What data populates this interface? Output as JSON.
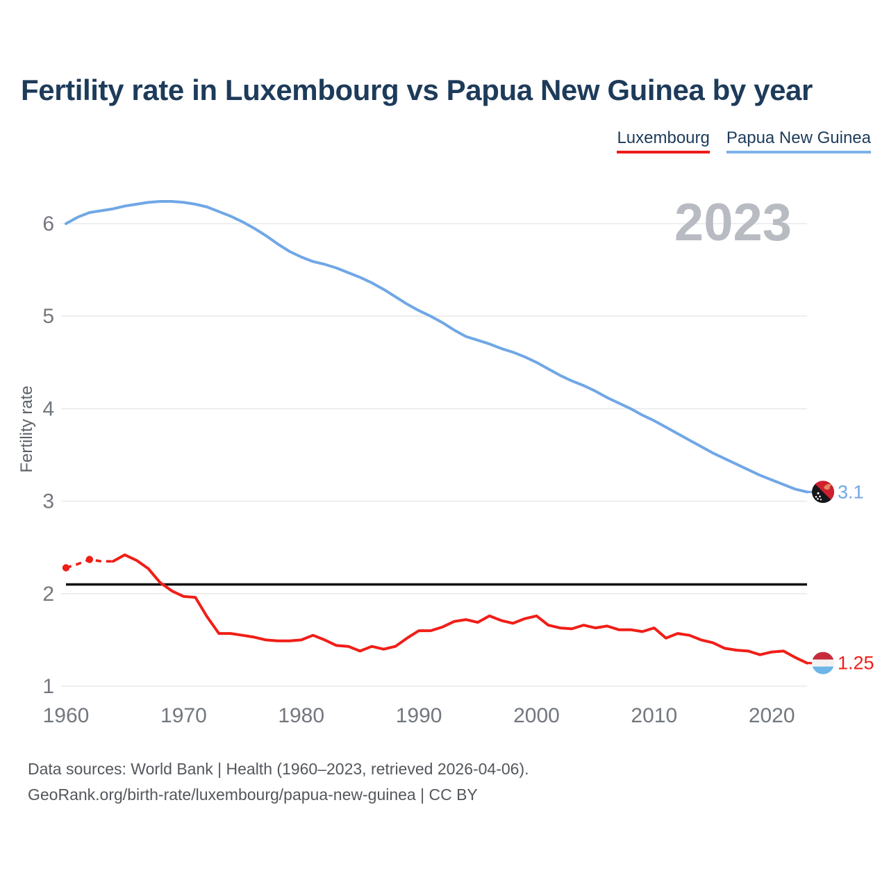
{
  "title": "Fertility rate in Luxembourg vs Papua New Guinea by year",
  "watermark_year": "2023",
  "legend": [
    {
      "label": "Luxembourg",
      "color": "#ee1c1c"
    },
    {
      "label": "Papua New Guinea",
      "color": "#7db2e8"
    }
  ],
  "footer": {
    "line1": "Data sources: World Bank | Health (1960–2023, retrieved 2026-04-06).",
    "line2": "GeoRank.org/birth-rate/luxembourg/papua-new-guinea | CC BY"
  },
  "chart_data": {
    "type": "line",
    "title": "Fertility rate in Luxembourg vs Papua New Guinea by year",
    "xlabel": "",
    "ylabel": "Fertility rate",
    "x_ticks": [
      1960,
      1970,
      1980,
      1990,
      2000,
      2010,
      2020
    ],
    "y_ticks": [
      1,
      2,
      3,
      4,
      5,
      6
    ],
    "xlim": [
      1960,
      2023
    ],
    "ylim": [
      0.7,
      6.45
    ],
    "grid": "horizontal",
    "legend_position": "top-right",
    "baseline": {
      "value": 2.1,
      "color": "#0a0a0a"
    },
    "series": [
      {
        "name": "Papua New Guinea",
        "color": "#70a7e6",
        "flag": "pg",
        "end_label": "3.1",
        "start_year": 1960,
        "values": [
          6.0,
          6.07,
          6.12,
          6.14,
          6.16,
          6.19,
          6.21,
          6.23,
          6.24,
          6.24,
          6.23,
          6.21,
          6.18,
          6.13,
          6.08,
          6.02,
          5.95,
          5.87,
          5.78,
          5.7,
          5.64,
          5.59,
          5.56,
          5.52,
          5.47,
          5.42,
          5.36,
          5.29,
          5.21,
          5.13,
          5.06,
          5.0,
          4.93,
          4.85,
          4.78,
          4.74,
          4.7,
          4.65,
          4.61,
          4.56,
          4.5,
          4.43,
          4.36,
          4.3,
          4.25,
          4.19,
          4.12,
          4.06,
          4.0,
          3.93,
          3.87,
          3.8,
          3.73,
          3.66,
          3.59,
          3.52,
          3.46,
          3.4,
          3.34,
          3.28,
          3.23,
          3.18,
          3.13,
          3.1
        ]
      },
      {
        "name": "Luxembourg",
        "color": "#f01e17",
        "flag": "lu",
        "end_label": "1.25",
        "start_year": 1960,
        "dashed_until_year": 1964,
        "marker_years": [
          1960,
          1962
        ],
        "values": [
          2.28,
          2.32,
          2.37,
          2.35,
          2.35,
          2.42,
          2.36,
          2.27,
          2.12,
          2.03,
          1.97,
          1.96,
          1.75,
          1.57,
          1.57,
          1.55,
          1.53,
          1.5,
          1.49,
          1.49,
          1.5,
          1.55,
          1.5,
          1.44,
          1.43,
          1.38,
          1.43,
          1.4,
          1.43,
          1.52,
          1.6,
          1.6,
          1.64,
          1.7,
          1.72,
          1.69,
          1.76,
          1.71,
          1.68,
          1.73,
          1.76,
          1.66,
          1.63,
          1.62,
          1.66,
          1.63,
          1.65,
          1.61,
          1.61,
          1.59,
          1.63,
          1.52,
          1.57,
          1.55,
          1.5,
          1.47,
          1.41,
          1.39,
          1.38,
          1.34,
          1.37,
          1.38,
          1.31,
          1.25
        ]
      }
    ]
  },
  "colors": {
    "grid": "#e9eaec",
    "tick_text": "#72777e",
    "axis_label_text": "#5c6168",
    "watermark": "#b8bcc2",
    "title_text": "#1d3b5a"
  }
}
